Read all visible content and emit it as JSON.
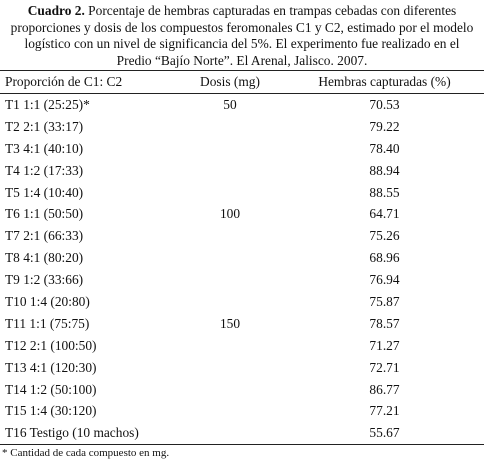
{
  "caption": {
    "label": "Cuadro 2.",
    "text": "Porcentaje de hembras capturadas en trampas cebadas con diferentes proporciones y dosis de los compuestos feromonales C1 y C2, estimado por el modelo logístico con un nivel de significancia del 5%. El experimento fue realizado en el Predio “Bajío Norte”. El Arenal, Jalisco. 2007."
  },
  "table": {
    "header": [
      "Proporción de C1: C2",
      "Dosis (mg)",
      "Hembras capturadas (%)"
    ],
    "rows": [
      {
        "treatment": "T1 1:1 (25:25)*",
        "dose": "50",
        "value": "70.53"
      },
      {
        "treatment": "T2 2:1 (33:17)",
        "value": "79.22"
      },
      {
        "treatment": "T3 4:1 (40:10)",
        "value": "78.40"
      },
      {
        "treatment": "T4 1:2 (17:33)",
        "value": "88.94"
      },
      {
        "treatment": "T5 1:4 (10:40)",
        "value": "88.55"
      },
      {
        "treatment": "T6 1:1 (50:50)",
        "dose": "100",
        "value": "64.71"
      },
      {
        "treatment": "T7 2:1 (66:33)",
        "value": "75.26"
      },
      {
        "treatment": "T8 4:1 (80:20)",
        "value": "68.96"
      },
      {
        "treatment": "T9 1:2 (33:66)",
        "value": "76.94"
      },
      {
        "treatment": "T10 1:4 (20:80)",
        "value": "75.87"
      },
      {
        "treatment": "T11 1:1 (75:75)",
        "dose": "150",
        "value": "78.57"
      },
      {
        "treatment": "T12 2:1 (100:50)",
        "value": "71.27"
      },
      {
        "treatment": "T13 4:1 (120:30)",
        "value": "72.71"
      },
      {
        "treatment": "T14 1:2 (50:100)",
        "value": "86.77"
      },
      {
        "treatment": "T15 1:4 (30:120)",
        "value": "77.21"
      },
      {
        "treatment": "T16 Testigo (10 machos)",
        "value": "55.67"
      }
    ]
  },
  "footnote": "* Cantidad de cada compuesto en mg."
}
